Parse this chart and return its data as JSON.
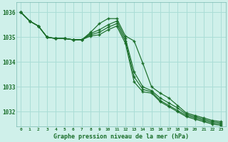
{
  "title": "Graphe pression niveau de la mer (hPa)",
  "bg_color": "#cff0ea",
  "grid_color": "#aaddd6",
  "line_color": "#1a6e2a",
  "ylim": [
    1031.4,
    1036.4
  ],
  "yticks": [
    1032,
    1033,
    1034,
    1035,
    1036
  ],
  "x_labels": [
    "0",
    "1",
    "2",
    "3",
    "4",
    "5",
    "6",
    "7",
    "8",
    "9",
    "10",
    "11",
    "12",
    "13",
    "14",
    "15",
    "16",
    "17",
    "18",
    "19",
    "20",
    "21",
    "22",
    "23"
  ],
  "line1_x": [
    0,
    1,
    2,
    3,
    4,
    5,
    6,
    7,
    8,
    9,
    10,
    11,
    12,
    13,
    14,
    15,
    16,
    17,
    18,
    19,
    20,
    21,
    22,
    23
  ],
  "line1_y": [
    1036.0,
    1035.65,
    1035.45,
    1035.0,
    1034.95,
    1034.95,
    1034.9,
    1034.9,
    1035.2,
    1035.55,
    1035.75,
    1035.75,
    1035.05,
    1034.85,
    1033.95,
    1033.0,
    1032.75,
    1032.55,
    1032.25,
    1031.95,
    1031.85,
    1031.75,
    1031.65,
    1031.6
  ],
  "line2_x": [
    0,
    1,
    2,
    3,
    4,
    5,
    6,
    7,
    8,
    9,
    10,
    11,
    12,
    13,
    14,
    15,
    16,
    17,
    18,
    19,
    20,
    21,
    22,
    23
  ],
  "line2_y": [
    1036.0,
    1035.65,
    1035.45,
    1035.0,
    1034.95,
    1034.95,
    1034.9,
    1034.9,
    1035.15,
    1035.3,
    1035.5,
    1035.65,
    1034.95,
    1033.6,
    1033.0,
    1032.85,
    1032.55,
    1032.35,
    1032.15,
    1031.9,
    1031.8,
    1031.7,
    1031.6,
    1031.55
  ],
  "line3_x": [
    0,
    1,
    2,
    3,
    4,
    5,
    6,
    7,
    8,
    9,
    10,
    11,
    12,
    13,
    14,
    15,
    16,
    17,
    18,
    19,
    20,
    21,
    22,
    23
  ],
  "line3_y": [
    1036.0,
    1035.65,
    1035.45,
    1035.0,
    1034.95,
    1034.95,
    1034.9,
    1034.9,
    1035.1,
    1035.2,
    1035.4,
    1035.55,
    1034.85,
    1033.4,
    1032.9,
    1032.8,
    1032.45,
    1032.25,
    1032.05,
    1031.85,
    1031.75,
    1031.65,
    1031.55,
    1031.5
  ],
  "line4_x": [
    0,
    1,
    2,
    3,
    4,
    5,
    6,
    7,
    8,
    9,
    10,
    11,
    12,
    13,
    14,
    15,
    16,
    17,
    18,
    19,
    20,
    21,
    22,
    23
  ],
  "line4_y": [
    1036.0,
    1035.65,
    1035.45,
    1035.0,
    1034.95,
    1034.95,
    1034.9,
    1034.9,
    1035.05,
    1035.1,
    1035.3,
    1035.45,
    1034.75,
    1033.2,
    1032.8,
    1032.75,
    1032.4,
    1032.2,
    1032.0,
    1031.8,
    1031.7,
    1031.6,
    1031.5,
    1031.45
  ]
}
